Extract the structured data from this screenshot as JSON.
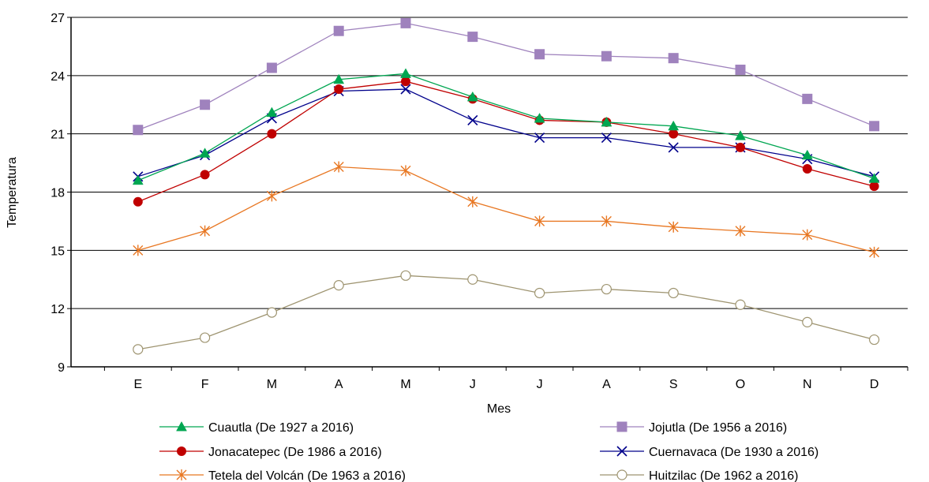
{
  "chart_data": {
    "type": "line",
    "title": "",
    "xlabel": "Mes",
    "ylabel": "Temperatura",
    "categories": [
      "E",
      "F",
      "M",
      "A",
      "M",
      "J",
      "J",
      "A",
      "S",
      "O",
      "N",
      "D"
    ],
    "ylim": [
      9,
      27
    ],
    "yticks": [
      9,
      12,
      15,
      18,
      21,
      24,
      27
    ],
    "grid": "horizontal",
    "legend_position": "bottom",
    "series": [
      {
        "name": "Cuautla (De 1927 a 2016)",
        "color": "#00a651",
        "marker": "triangle",
        "values": [
          18.6,
          20.0,
          22.1,
          23.8,
          24.1,
          22.9,
          21.8,
          21.6,
          21.4,
          20.9,
          19.9,
          18.7
        ]
      },
      {
        "name": "Jojutla (De 1956 a 2016)",
        "color": "#9f82bd",
        "marker": "square",
        "values": [
          21.2,
          22.5,
          24.4,
          26.3,
          26.7,
          26.0,
          25.1,
          25.0,
          24.9,
          24.3,
          22.8,
          21.4
        ]
      },
      {
        "name": "Jonacatepec (De 1986 a 2016)",
        "color": "#c00000",
        "marker": "circle",
        "values": [
          17.5,
          18.9,
          21.0,
          23.3,
          23.7,
          22.8,
          21.7,
          21.6,
          21.0,
          20.3,
          19.2,
          18.3
        ]
      },
      {
        "name": "Cuernavaca (De 1930 a 2016)",
        "color": "#00008b",
        "marker": "x",
        "values": [
          18.8,
          19.9,
          21.8,
          23.2,
          23.3,
          21.7,
          20.8,
          20.8,
          20.3,
          20.3,
          19.7,
          18.8
        ]
      },
      {
        "name": "Tetela del Volcán (De 1963 a 2016)",
        "color": "#e87722",
        "marker": "star",
        "values": [
          15.0,
          16.0,
          17.8,
          19.3,
          19.1,
          17.5,
          16.5,
          16.5,
          16.2,
          16.0,
          15.8,
          14.9
        ]
      },
      {
        "name": "Huitzilac (De 1962 a 2016)",
        "color": "#9e9470",
        "marker": "open-circle",
        "values": [
          9.9,
          10.5,
          11.8,
          13.2,
          13.7,
          13.5,
          12.8,
          13.0,
          12.8,
          12.2,
          11.3,
          10.4
        ]
      }
    ]
  }
}
